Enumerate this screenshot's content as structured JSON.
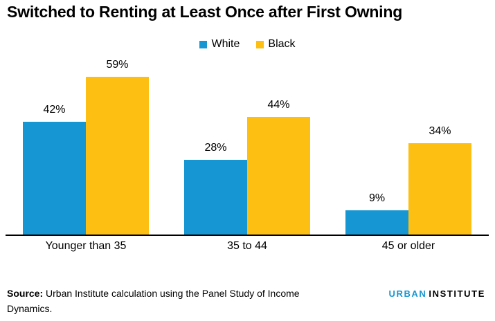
{
  "title": "Switched to Renting at Least Once after First Owning",
  "chart_data": {
    "type": "bar",
    "categories": [
      "Younger than 35",
      "35 to 44",
      "45 or older"
    ],
    "series": [
      {
        "name": "White",
        "color": "#1696d2",
        "values": [
          42,
          28,
          9
        ]
      },
      {
        "name": "Black",
        "color": "#fdbf11",
        "values": [
          59,
          44,
          34
        ]
      }
    ],
    "value_suffix": "%",
    "data_labels_shown": true,
    "xlabel": "",
    "ylabel": "",
    "ylim": [
      0,
      62
    ],
    "grid": false,
    "y_axis_shown": false,
    "legend_position": "top-center"
  },
  "source": {
    "label": "Source:",
    "text": " Urban Institute calculation using the Panel Study of Income Dynamics."
  },
  "logo": {
    "part1": "URBAN",
    "part2": "INSTITUTE"
  },
  "colors": {
    "series_white": "#1696d2",
    "series_black": "#fdbf11",
    "axis": "#000000",
    "text": "#000000",
    "logo_urban": "#1696d2",
    "logo_institute": "#000000"
  }
}
